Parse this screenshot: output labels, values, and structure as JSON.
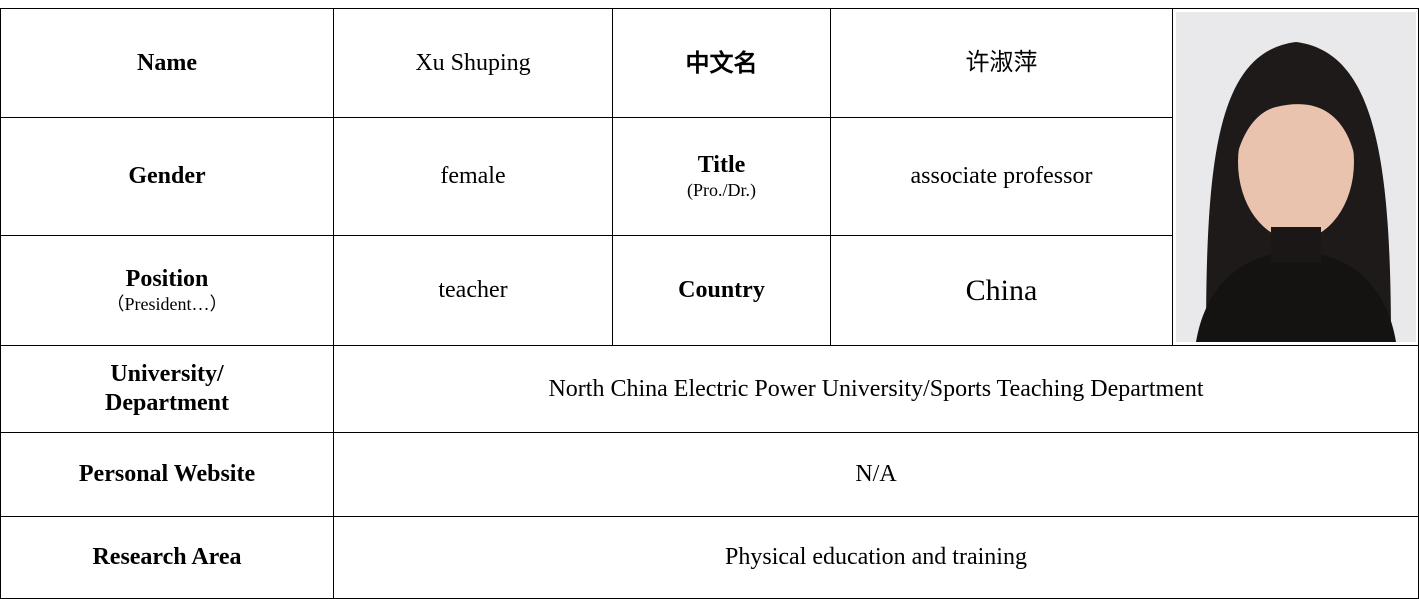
{
  "table": {
    "rows": [
      [
        {
          "label": "Name"
        },
        "Xu Shuping",
        {
          "label": "中文名"
        },
        "许淑萍"
      ],
      [
        {
          "label": "Gender"
        },
        "female",
        {
          "label": "Title",
          "note": "(Pro./Dr.)"
        },
        "associate professor"
      ],
      [
        {
          "label": "Position",
          "note": "（President…）"
        },
        "teacher",
        {
          "label": "Country"
        },
        "China"
      ],
      [
        {
          "label": "University/ Department"
        },
        "North China Electric Power University/Sports Teaching Department"
      ],
      [
        {
          "label": "Personal Website"
        },
        "N/A"
      ],
      [
        {
          "label": "Research Area"
        },
        "Physical education and training"
      ]
    ]
  }
}
